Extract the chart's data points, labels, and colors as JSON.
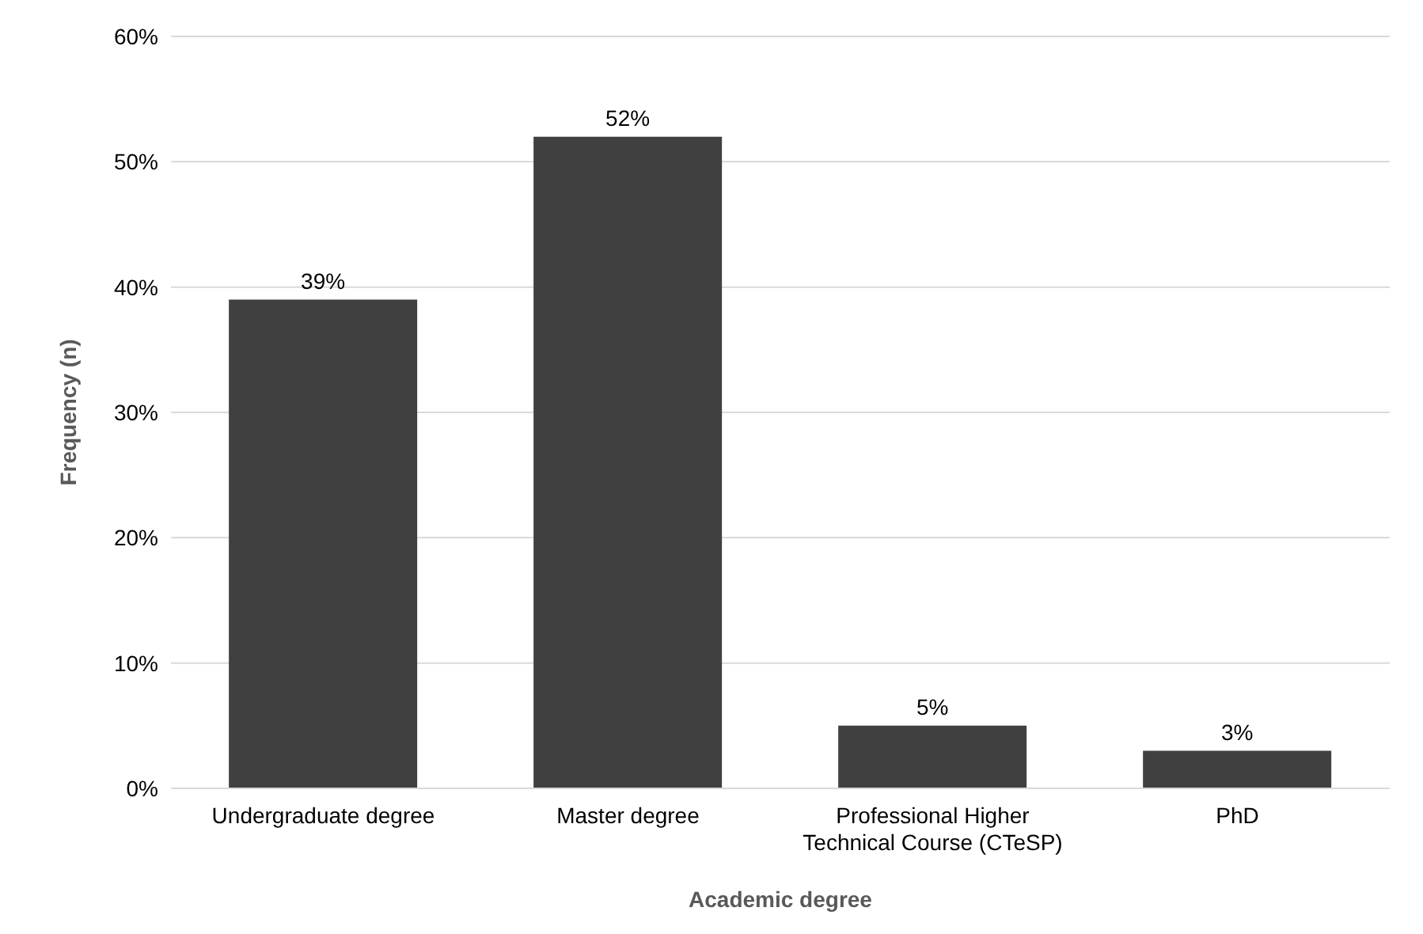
{
  "chart_data": {
    "type": "bar",
    "xlabel": "Academic degree",
    "ylabel": "Frequency (n)",
    "categories": [
      "Undergraduate degree",
      "Master degree",
      "Professional Higher Technical Course (CTeSP)",
      "PhD"
    ],
    "values": [
      39,
      52,
      5,
      3
    ],
    "value_labels": [
      "39%",
      "52%",
      "5%",
      "3%"
    ],
    "color": "#404040",
    "ylim": [
      0,
      60
    ],
    "yticks": [
      {
        "value": 0,
        "label": "0%"
      },
      {
        "value": 10,
        "label": "10%"
      },
      {
        "value": 20,
        "label": "20%"
      },
      {
        "value": 30,
        "label": "30%"
      },
      {
        "value": 40,
        "label": "40%"
      },
      {
        "value": 50,
        "label": "50%"
      },
      {
        "value": 60,
        "label": "60%"
      }
    ],
    "grid": "y"
  }
}
